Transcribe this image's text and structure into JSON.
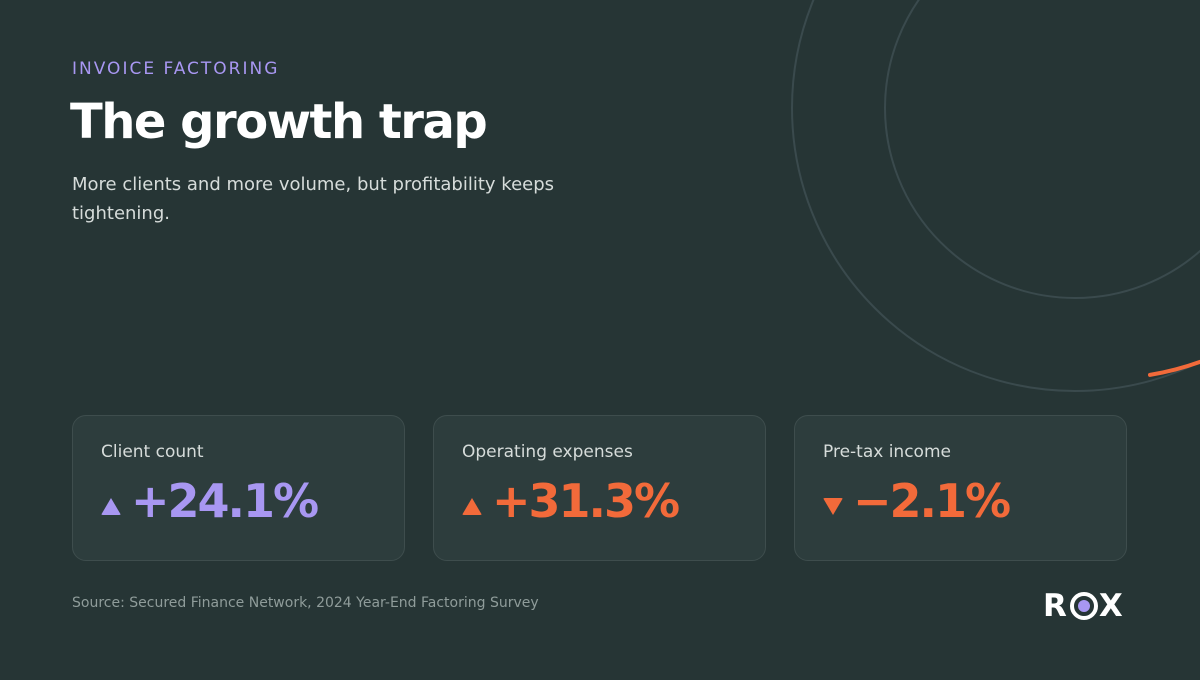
{
  "header": {
    "eyebrow": "INVOICE FACTORING",
    "title": "The growth trap",
    "subtitle": "More clients and more volume, but profitability keeps tightening."
  },
  "metrics": [
    {
      "label": "Client count",
      "value": "+24.1%",
      "direction": "up",
      "color": "#a897f2"
    },
    {
      "label": "Operating expenses",
      "value": "+31.3%",
      "direction": "up",
      "color": "#f26a3a"
    },
    {
      "label": "Pre-tax income",
      "value": "−2.1%",
      "direction": "down",
      "color": "#f26a3a"
    }
  ],
  "footer": {
    "source": "Source: Secured Finance Network, 2024 Year-End Factoring Survey",
    "logo": {
      "left": "R",
      "right": "X"
    }
  },
  "colors": {
    "background": "#263535",
    "card": "#2d3d3d",
    "accent_purple": "#a897f2",
    "accent_orange": "#f26a3a"
  }
}
